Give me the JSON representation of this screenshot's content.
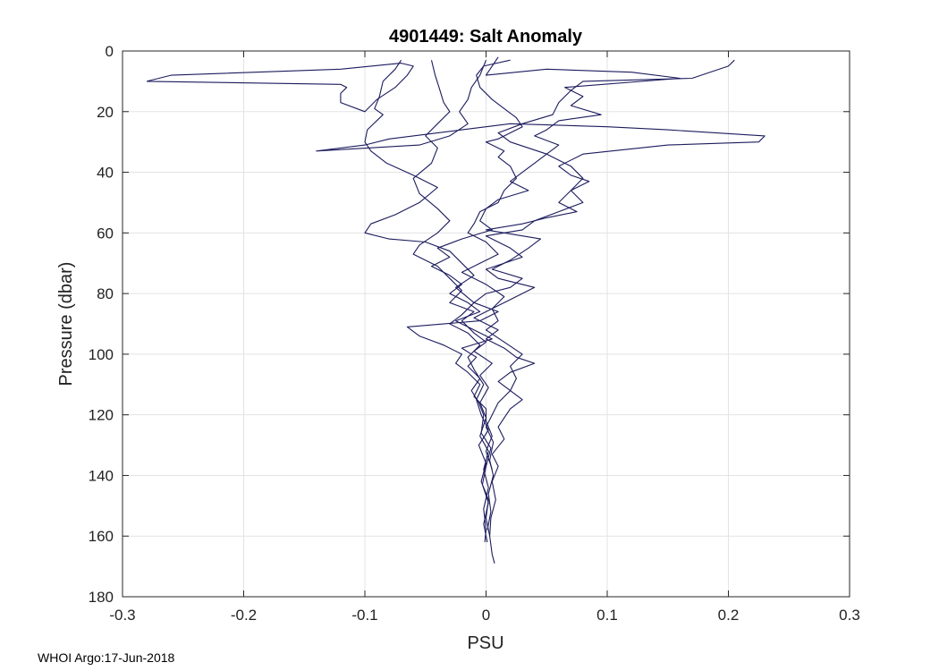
{
  "chart_data": {
    "type": "line",
    "title": "4901449: Salt Anomaly",
    "xlabel": "PSU",
    "ylabel": "Pressure (dbar)",
    "xlim": [
      -0.3,
      0.3
    ],
    "ylim": [
      0,
      180
    ],
    "y_reversed": true,
    "xticks": [
      -0.3,
      -0.2,
      -0.1,
      0,
      0.1,
      0.2,
      0.3
    ],
    "xtick_labels": [
      "-0.3",
      "-0.2",
      "-0.1",
      "0",
      "0.1",
      "0.2",
      "0.3"
    ],
    "yticks": [
      0,
      20,
      40,
      60,
      80,
      100,
      120,
      140,
      160,
      180
    ],
    "ytick_labels": [
      "0",
      "20",
      "40",
      "60",
      "80",
      "100",
      "120",
      "140",
      "160",
      "180"
    ],
    "grid": true,
    "line_color": "#1b1b5e",
    "series": [
      {
        "points": [
          [
            -0.07,
            3
          ],
          [
            -0.075,
            6
          ],
          [
            -0.085,
            10
          ],
          [
            -0.088,
            15
          ],
          [
            -0.092,
            19
          ],
          [
            -0.085,
            21
          ],
          [
            -0.098,
            26
          ],
          [
            -0.1,
            30
          ],
          [
            -0.095,
            33
          ],
          [
            -0.082,
            37
          ],
          [
            -0.06,
            41
          ],
          [
            -0.04,
            45
          ],
          [
            -0.055,
            50
          ],
          [
            -0.075,
            54
          ],
          [
            -0.095,
            57
          ],
          [
            -0.1,
            60
          ],
          [
            -0.08,
            62
          ],
          [
            -0.05,
            63
          ],
          [
            -0.03,
            66
          ],
          [
            -0.02,
            70
          ],
          [
            -0.01,
            74
          ],
          [
            -0.025,
            78
          ],
          [
            -0.01,
            83
          ],
          [
            -0.02,
            87
          ],
          [
            -0.03,
            90
          ],
          [
            -0.015,
            93
          ],
          [
            -0.005,
            97
          ],
          [
            -0.015,
            101
          ],
          [
            -0.01,
            105
          ],
          [
            -0.002,
            110
          ],
          [
            -0.008,
            115
          ],
          [
            -0.004,
            120
          ],
          [
            0.002,
            125
          ],
          [
            -0.006,
            130
          ],
          [
            0.0,
            136
          ],
          [
            -0.004,
            142
          ],
          [
            0.002,
            148
          ],
          [
            0.0,
            154
          ],
          [
            0.003,
            160
          ],
          [
            0.005,
            166
          ],
          [
            0.007,
            169
          ]
        ]
      },
      {
        "points": [
          [
            -0.045,
            3
          ],
          [
            -0.042,
            8
          ],
          [
            -0.038,
            13
          ],
          [
            -0.035,
            17
          ],
          [
            -0.03,
            20
          ],
          [
            -0.04,
            24
          ],
          [
            -0.05,
            28
          ],
          [
            -0.04,
            32
          ],
          [
            -0.045,
            37
          ],
          [
            -0.06,
            42
          ],
          [
            -0.055,
            47
          ],
          [
            -0.04,
            52
          ],
          [
            -0.03,
            56
          ],
          [
            -0.04,
            60
          ],
          [
            -0.055,
            64
          ],
          [
            -0.06,
            67
          ],
          [
            -0.04,
            71
          ],
          [
            -0.03,
            75
          ],
          [
            -0.02,
            79
          ],
          [
            -0.03,
            83
          ],
          [
            -0.01,
            86
          ],
          [
            -0.02,
            89
          ],
          [
            -0.01,
            93
          ],
          [
            0.0,
            96
          ],
          [
            -0.01,
            99
          ],
          [
            0.005,
            103
          ],
          [
            -0.005,
            107
          ],
          [
            0.002,
            111
          ],
          [
            -0.005,
            116
          ],
          [
            0.0,
            121
          ],
          [
            -0.005,
            127
          ],
          [
            0.002,
            132
          ],
          [
            -0.002,
            138
          ],
          [
            0.002,
            144
          ],
          [
            -0.002,
            151
          ],
          [
            0.0,
            158
          ],
          [
            -0.001,
            162
          ]
        ]
      },
      {
        "points": [
          [
            0.02,
            3
          ],
          [
            -0.002,
            5
          ],
          [
            -0.008,
            8
          ],
          [
            -0.005,
            12
          ],
          [
            0.005,
            16
          ],
          [
            0.015,
            19
          ],
          [
            0.025,
            22
          ],
          [
            0.03,
            25
          ],
          [
            0.02,
            27
          ],
          [
            0.01,
            29
          ],
          [
            0.0,
            30
          ],
          [
            0.005,
            31
          ],
          [
            0.015,
            33
          ],
          [
            0.01,
            35
          ],
          [
            0.02,
            38
          ],
          [
            0.025,
            42
          ],
          [
            0.015,
            46
          ],
          [
            0.01,
            50
          ],
          [
            -0.005,
            53
          ],
          [
            -0.01,
            57
          ],
          [
            -0.015,
            60
          ],
          [
            0.0,
            63
          ],
          [
            0.01,
            67
          ],
          [
            -0.005,
            70
          ],
          [
            -0.02,
            73
          ],
          [
            0.0,
            77
          ],
          [
            0.015,
            81
          ],
          [
            0.005,
            85
          ],
          [
            0.01,
            89
          ],
          [
            0.0,
            92
          ],
          [
            0.015,
            96
          ],
          [
            0.03,
            100
          ],
          [
            0.02,
            104
          ],
          [
            0.025,
            108
          ],
          [
            0.02,
            112
          ],
          [
            0.03,
            115
          ],
          [
            0.02,
            118
          ],
          [
            0.015,
            121
          ],
          [
            0.01,
            124
          ],
          [
            0.015,
            128
          ],
          [
            0.005,
            133
          ],
          [
            0.01,
            137
          ],
          [
            0.005,
            142
          ],
          [
            0.008,
            148
          ],
          [
            0.004,
            154
          ],
          [
            0.003,
            160
          ]
        ]
      },
      {
        "points": [
          [
            0.205,
            3
          ],
          [
            0.2,
            5
          ],
          [
            0.17,
            9
          ],
          [
            0.08,
            10
          ],
          [
            0.07,
            13
          ],
          [
            0.06,
            17
          ],
          [
            0.055,
            21
          ],
          [
            0.03,
            24
          ],
          [
            0.01,
            27
          ],
          [
            0.02,
            30
          ],
          [
            0.05,
            34
          ],
          [
            0.07,
            38
          ],
          [
            0.08,
            42
          ],
          [
            0.07,
            46
          ],
          [
            0.08,
            50
          ],
          [
            0.06,
            53
          ],
          [
            0.04,
            56
          ],
          [
            0.03,
            59
          ],
          [
            0.0,
            61
          ],
          [
            0.02,
            65
          ],
          [
            0.03,
            68
          ],
          [
            0.0,
            72
          ],
          [
            0.01,
            75
          ],
          [
            0.04,
            78
          ],
          [
            0.02,
            82
          ],
          [
            0.0,
            86
          ],
          [
            -0.01,
            88
          ],
          [
            0.01,
            92
          ],
          [
            0.0,
            95
          ],
          [
            0.015,
            98
          ],
          [
            0.025,
            101
          ],
          [
            0.04,
            103
          ],
          [
            0.02,
            106
          ],
          [
            0.01,
            109
          ],
          [
            0.02,
            112
          ],
          [
            0.01,
            116
          ],
          [
            0.005,
            120
          ],
          [
            0.0,
            124
          ],
          [
            0.006,
            129
          ],
          [
            0.003,
            135
          ],
          [
            0.006,
            140
          ],
          [
            0.002,
            146
          ],
          [
            0.004,
            152
          ],
          [
            0.001,
            158
          ]
        ]
      },
      {
        "points": [
          [
            0.0,
            3
          ],
          [
            -0.005,
            8
          ],
          [
            -0.012,
            12
          ],
          [
            -0.015,
            16
          ],
          [
            -0.022,
            20
          ],
          [
            -0.015,
            24
          ],
          [
            -0.03,
            28
          ],
          [
            -0.055,
            31
          ],
          [
            -0.14,
            33
          ],
          [
            -0.1,
            31
          ],
          [
            -0.08,
            29
          ],
          [
            -0.02,
            26
          ],
          [
            0.02,
            24
          ],
          [
            0.1,
            25
          ],
          [
            0.15,
            26
          ],
          [
            0.23,
            28
          ],
          [
            0.225,
            30
          ],
          [
            0.15,
            31
          ],
          [
            0.08,
            34
          ],
          [
            0.06,
            38
          ],
          [
            0.07,
            41
          ],
          [
            0.085,
            43
          ],
          [
            0.07,
            46
          ],
          [
            0.06,
            50
          ],
          [
            0.075,
            53
          ],
          [
            0.05,
            55
          ],
          [
            0.03,
            57
          ],
          [
            0.0,
            59
          ],
          [
            0.045,
            62
          ],
          [
            0.035,
            65
          ],
          [
            0.02,
            69
          ],
          [
            0.005,
            72
          ],
          [
            0.03,
            75
          ],
          [
            0.02,
            78
          ],
          [
            0.0,
            80
          ],
          [
            -0.01,
            83
          ],
          [
            0.01,
            86
          ],
          [
            -0.005,
            89
          ],
          [
            -0.065,
            91
          ],
          [
            -0.055,
            94
          ],
          [
            -0.035,
            97
          ],
          [
            -0.02,
            100
          ],
          [
            -0.025,
            103
          ],
          [
            -0.015,
            106
          ],
          [
            -0.005,
            110
          ],
          [
            -0.01,
            114
          ],
          [
            0.0,
            118
          ],
          [
            0.0,
            122
          ],
          [
            0.005,
            127
          ],
          [
            0.0,
            132
          ],
          [
            0.005,
            138
          ]
        ]
      },
      {
        "points": [
          [
            0.01,
            2
          ],
          [
            0.0,
            8
          ],
          [
            0.05,
            6
          ],
          [
            0.12,
            7
          ],
          [
            0.16,
            9
          ],
          [
            0.065,
            12
          ],
          [
            0.08,
            15
          ],
          [
            0.07,
            18
          ],
          [
            0.095,
            21
          ],
          [
            0.06,
            23
          ],
          [
            0.05,
            26
          ],
          [
            0.04,
            28
          ],
          [
            0.06,
            31
          ],
          [
            0.05,
            34
          ],
          [
            0.04,
            37
          ],
          [
            0.03,
            40
          ],
          [
            0.02,
            43
          ],
          [
            0.035,
            46
          ],
          [
            0.01,
            49
          ],
          [
            0.0,
            52
          ],
          [
            -0.005,
            56
          ],
          [
            0.005,
            59
          ],
          [
            -0.02,
            62
          ],
          [
            -0.04,
            65
          ],
          [
            -0.03,
            68
          ],
          [
            -0.045,
            71
          ],
          [
            -0.03,
            74
          ],
          [
            -0.02,
            77
          ],
          [
            -0.03,
            80
          ],
          [
            -0.015,
            83
          ],
          [
            -0.005,
            86
          ],
          [
            -0.025,
            89
          ],
          [
            -0.01,
            92
          ],
          [
            0.005,
            95
          ],
          [
            -0.02,
            98
          ],
          [
            -0.008,
            101
          ],
          [
            -0.015,
            104
          ],
          [
            -0.005,
            108
          ],
          [
            -0.012,
            112
          ],
          [
            -0.006,
            116
          ],
          [
            -0.002,
            120
          ],
          [
            -0.004,
            126
          ],
          [
            0.004,
            131
          ],
          [
            0.0,
            137
          ],
          [
            -0.003,
            143
          ],
          [
            0.002,
            149
          ],
          [
            -0.002,
            156
          ],
          [
            0.001,
            162
          ]
        ]
      },
      {
        "points": [
          [
            -0.28,
            10
          ],
          [
            -0.26,
            8
          ],
          [
            -0.12,
            6
          ],
          [
            -0.07,
            4
          ],
          [
            -0.06,
            5
          ],
          [
            -0.065,
            8
          ],
          [
            -0.075,
            12
          ],
          [
            -0.09,
            16
          ],
          [
            -0.1,
            20
          ],
          [
            -0.12,
            17
          ],
          [
            -0.12,
            14
          ],
          [
            -0.115,
            12
          ],
          [
            -0.12,
            11
          ],
          [
            -0.28,
            10
          ]
        ]
      }
    ]
  },
  "footer": "WHOI Argo:17-Jun-2018"
}
